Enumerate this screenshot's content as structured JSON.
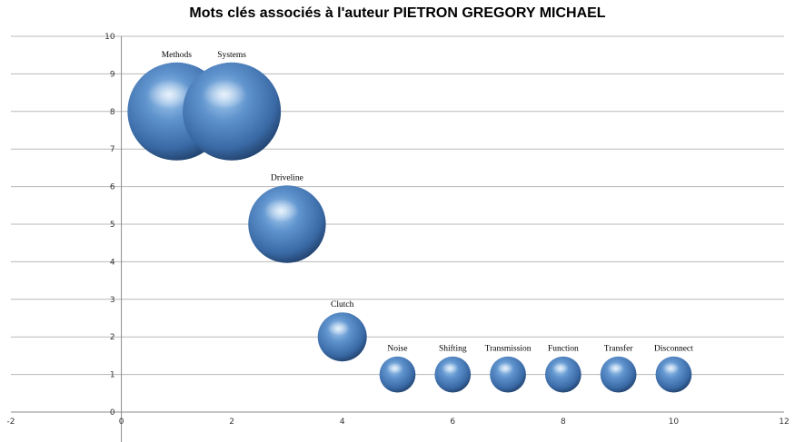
{
  "chart_data": {
    "type": "bubble",
    "title": "Mots clés associés à l'auteur PIETRON GREGORY MICHAEL",
    "xlim": [
      -2,
      12
    ],
    "ylim": [
      0,
      10
    ],
    "x_ticks": [
      "-2",
      "0",
      "2",
      "4",
      "6",
      "8",
      "10",
      "12"
    ],
    "y_ticks": [
      "0",
      "1",
      "2",
      "3",
      "4",
      "5",
      "6",
      "7",
      "8",
      "9",
      "10"
    ],
    "grid": "horizontal",
    "bubble_color": "#4a7ebf",
    "points": [
      {
        "label": "Methods",
        "x": 1,
        "y": 8,
        "size": 8
      },
      {
        "label": "Systems",
        "x": 2,
        "y": 8,
        "size": 8
      },
      {
        "label": "Driveline",
        "x": 3,
        "y": 5,
        "size": 5
      },
      {
        "label": "Clutch",
        "x": 4,
        "y": 2,
        "size": 2
      },
      {
        "label": "Noise",
        "x": 5,
        "y": 1,
        "size": 1
      },
      {
        "label": "Shifting",
        "x": 6,
        "y": 1,
        "size": 1
      },
      {
        "label": "Transmission",
        "x": 7,
        "y": 1,
        "size": 1
      },
      {
        "label": "Function",
        "x": 8,
        "y": 1,
        "size": 1
      },
      {
        "label": "Transfer",
        "x": 9,
        "y": 1,
        "size": 1
      },
      {
        "label": "Disconnect",
        "x": 10,
        "y": 1,
        "size": 1
      }
    ]
  }
}
